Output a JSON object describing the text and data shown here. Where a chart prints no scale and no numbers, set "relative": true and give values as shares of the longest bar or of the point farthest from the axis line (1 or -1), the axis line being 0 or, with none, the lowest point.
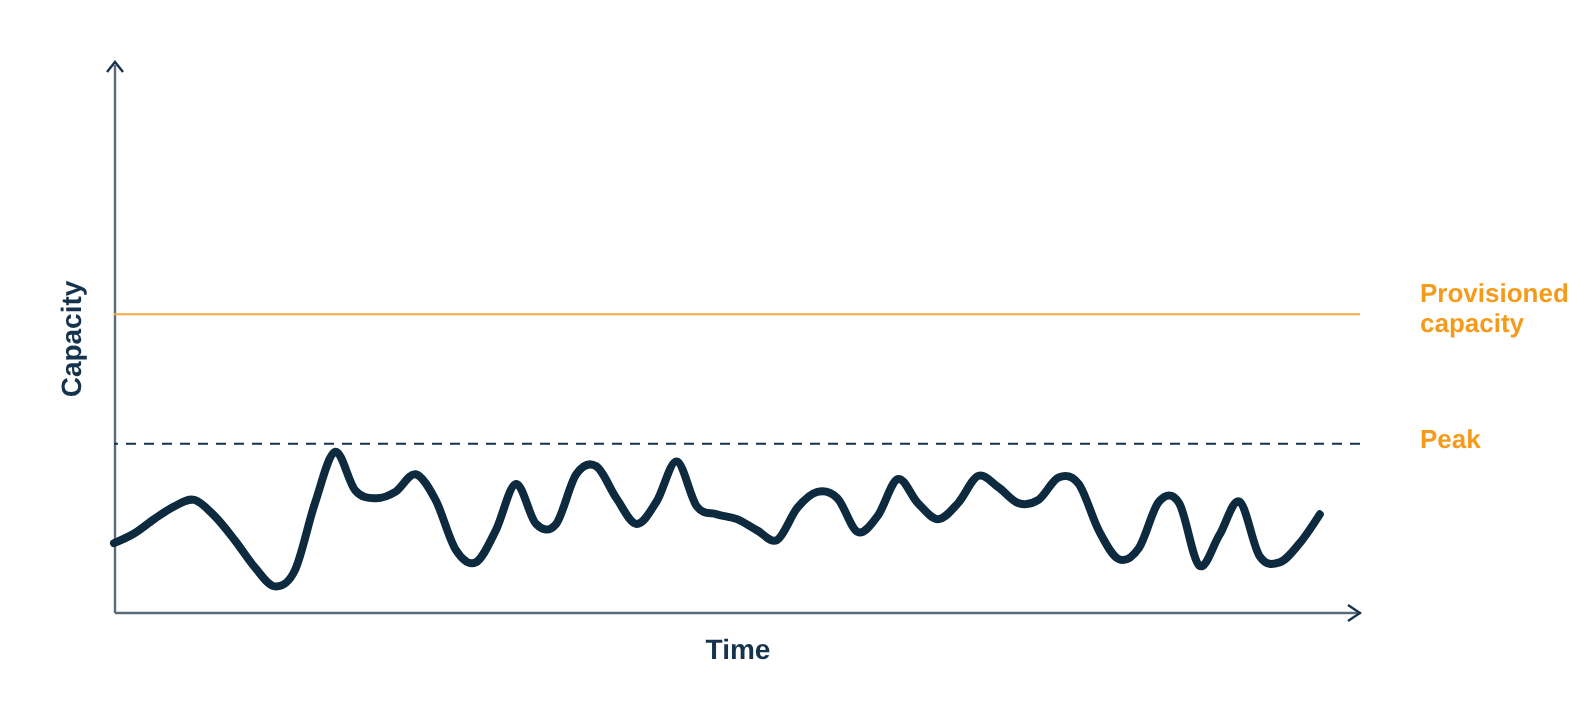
{
  "chart_data": {
    "type": "line",
    "relative": true,
    "xlabel": "Time",
    "ylabel": "Capacity",
    "tick_labels": false,
    "categories": [
      null,
      null,
      null,
      null,
      null,
      null,
      null,
      null,
      null,
      null,
      null,
      null,
      null,
      null,
      null,
      null,
      null,
      null,
      null,
      null,
      null,
      null,
      null,
      null,
      null,
      null,
      null,
      null,
      null,
      null,
      null,
      null,
      null,
      null,
      null,
      null,
      null,
      null,
      null,
      null,
      null,
      null,
      null,
      null,
      null,
      null,
      null,
      null,
      null,
      null,
      null,
      null,
      null,
      null,
      null,
      null,
      null,
      null,
      null,
      null,
      null,
      null,
      null
    ],
    "series": [
      {
        "color": "#0d2a3f",
        "values": [
          0.43,
          0.49,
          0.58,
          0.66,
          0.7,
          0.6,
          0.45,
          0.28,
          0.16,
          0.26,
          0.68,
          1.0,
          0.76,
          0.71,
          0.75,
          0.86,
          0.7,
          0.39,
          0.31,
          0.51,
          0.8,
          0.55,
          0.55,
          0.86,
          0.91,
          0.71,
          0.55,
          0.69,
          0.94,
          0.66,
          0.61,
          0.58,
          0.51,
          0.45,
          0.65,
          0.75,
          0.71,
          0.5,
          0.6,
          0.83,
          0.68,
          0.58,
          0.68,
          0.85,
          0.78,
          0.68,
          0.7,
          0.84,
          0.8,
          0.51,
          0.33,
          0.4,
          0.69,
          0.68,
          0.29,
          0.48,
          0.69,
          0.35,
          0.31,
          0.43,
          0.61,
          null,
          null
        ]
      }
    ],
    "ref_lines": [
      {
        "axis": "y",
        "value": 1.86,
        "label": "Provisioned capacity",
        "color": "#f7a93b",
        "line_style": "solid"
      },
      {
        "axis": "y",
        "value": 1.05,
        "label": "Peak",
        "color": "#16334d",
        "line_style": "dashed"
      }
    ]
  }
}
